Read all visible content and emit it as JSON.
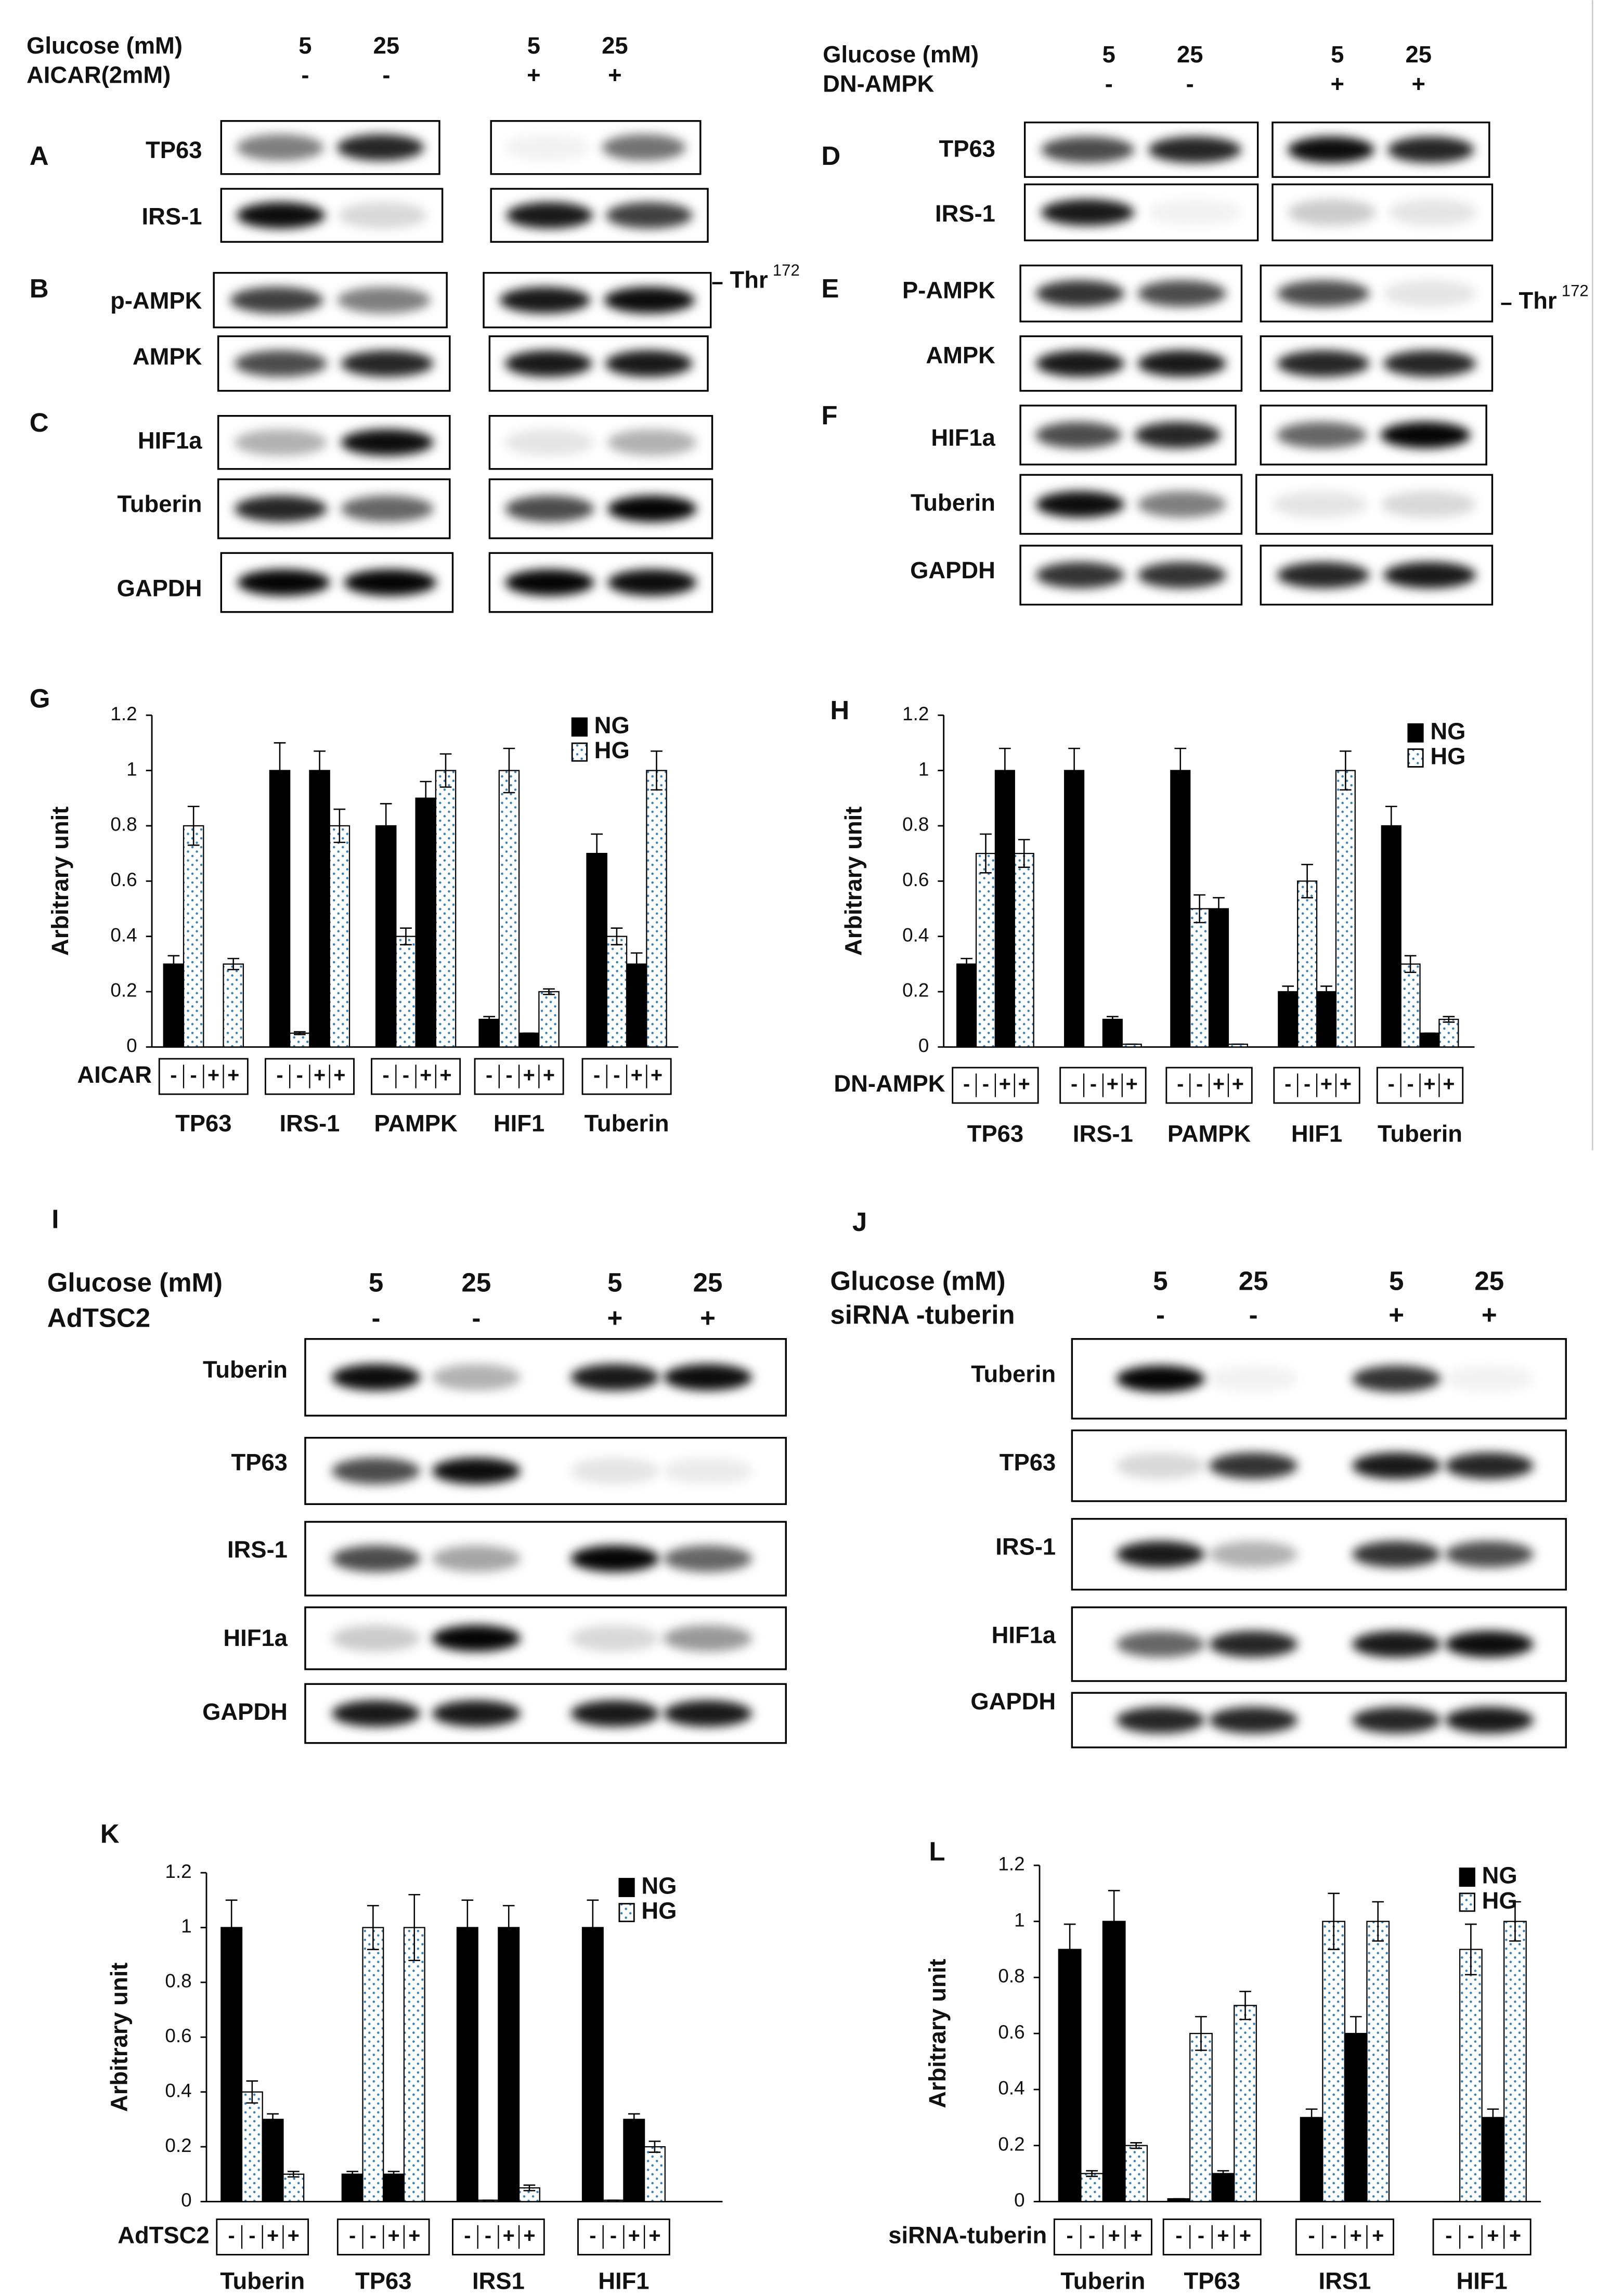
{
  "blots": [
    {
      "header": {
        "label": "Glucose (mM)",
        "lanes": [
          "5",
          "25",
          "5",
          "25"
        ]
      },
      "treatment": {
        "label": "AICAR(2mM)",
        "marks": [
          "-",
          "-",
          "+",
          "+"
        ]
      },
      "sections": [
        {
          "label": "A",
          "rows": [
            "TP63",
            "IRS-1"
          ]
        },
        {
          "label": "B",
          "rows": [
            "p-AMPK",
            "AMPK"
          ],
          "site": {
            "text": "Thr",
            "sup": "172"
          }
        },
        {
          "label": "C",
          "rows": [
            "HIF1a",
            "Tuberin",
            "GAPDH"
          ]
        }
      ]
    },
    {
      "header": {
        "label": "Glucose (mM)",
        "lanes": [
          "5",
          "25",
          "5",
          "25"
        ]
      },
      "treatment": {
        "label": "DN-AMPK",
        "marks": [
          "-",
          "-",
          "+",
          "+"
        ]
      },
      "sections": [
        {
          "label": "D",
          "rows": [
            "TP63",
            "IRS-1"
          ]
        },
        {
          "label": "E",
          "rows": [
            "P-AMPK",
            "AMPK"
          ],
          "site": {
            "text": "Thr",
            "sup": "172"
          }
        },
        {
          "label": "F",
          "rows": [
            "HIF1a",
            "Tuberin",
            "GAPDH"
          ]
        }
      ]
    },
    {
      "panel": "I",
      "header": {
        "label": "Glucose (mM)",
        "lanes": [
          "5",
          "25",
          "5",
          "25"
        ]
      },
      "treatment": {
        "label": "AdTSC2",
        "marks": [
          "-",
          "-",
          "+",
          "+"
        ]
      },
      "rows": [
        "Tuberin",
        "TP63",
        "IRS-1",
        "HIF1a",
        "GAPDH"
      ]
    },
    {
      "panel": "J",
      "header": {
        "label": "Glucose (mM)",
        "lanes": [
          "5",
          "25",
          "5",
          "25"
        ]
      },
      "treatment": {
        "label": "siRNA -tuberin",
        "marks": [
          "-",
          "-",
          "+",
          "+"
        ]
      },
      "rows": [
        "Tuberin",
        "TP63",
        "IRS-1",
        "HIF1a",
        "GAPDH"
      ]
    }
  ],
  "chart_data": [
    {
      "type": "bar",
      "panel": "G",
      "ylabel": "Arbitrary unit",
      "categories": [
        "TP63",
        "IRS-1",
        "PAMPK",
        "HIF1",
        "Tuberin"
      ],
      "treatment": "AICAR",
      "treatment_marks": [
        "-",
        "-",
        "+",
        "+"
      ],
      "series": [
        {
          "name": "NG",
          "color": "#000000",
          "values": [
            [
              0.3,
              0
            ],
            [
              1,
              1
            ],
            [
              0.8,
              0.9
            ],
            [
              0.1,
              0.05
            ],
            [
              0.7,
              0.3
            ]
          ],
          "errors": [
            [
              0.03,
              0
            ],
            [
              0.1,
              0.07
            ],
            [
              0.08,
              0.06
            ],
            [
              0.01,
              0
            ],
            [
              0.07,
              0.04
            ]
          ]
        },
        {
          "name": "HG",
          "color": "#3a7fb0",
          "values": [
            [
              0.8,
              0.3
            ],
            [
              0.05,
              0.8
            ],
            [
              0.4,
              1
            ],
            [
              1,
              0.2
            ],
            [
              0.4,
              1
            ]
          ],
          "errors": [
            [
              0.07,
              0.02
            ],
            [
              0.005,
              0.06
            ],
            [
              0.03,
              0.06
            ],
            [
              0.08,
              0.01
            ],
            [
              0.03,
              0.07
            ]
          ]
        }
      ],
      "ylim": [
        0,
        1.2
      ],
      "yticks": [
        0,
        0.2,
        0.4,
        0.6,
        0.8,
        1,
        1.2
      ],
      "grid": false
    },
    {
      "type": "bar",
      "panel": "H",
      "ylabel": "Arbitrary unit",
      "categories": [
        "TP63",
        "IRS-1",
        "PAMPK",
        "HIF1",
        "Tuberin"
      ],
      "treatment": "DN-AMPK",
      "treatment_marks": [
        "-",
        "-",
        "+",
        "+"
      ],
      "series": [
        {
          "name": "NG",
          "color": "#000000",
          "values": [
            [
              0.3,
              1
            ],
            [
              1,
              0.1
            ],
            [
              1,
              0.5
            ],
            [
              0.2,
              0.2
            ],
            [
              0.8,
              0.05
            ]
          ],
          "errors": [
            [
              0.02,
              0.08
            ],
            [
              0.08,
              0.01
            ],
            [
              0.08,
              0.04
            ],
            [
              0.02,
              0.02
            ],
            [
              0.07,
              0
            ]
          ]
        },
        {
          "name": "HG",
          "color": "#3a7fb0",
          "values": [
            [
              0.7,
              0.7
            ],
            [
              0,
              0.01
            ],
            [
              0.5,
              0.01
            ],
            [
              0.6,
              1
            ],
            [
              0.3,
              0.1
            ]
          ],
          "errors": [
            [
              0.07,
              0.05
            ],
            [
              0,
              0
            ],
            [
              0.05,
              0
            ],
            [
              0.06,
              0.07
            ],
            [
              0.03,
              0.01
            ]
          ]
        }
      ],
      "ylim": [
        0,
        1.2
      ],
      "yticks": [
        0,
        0.2,
        0.4,
        0.6,
        0.8,
        1,
        1.2
      ],
      "grid": false
    },
    {
      "type": "bar",
      "panel": "K",
      "ylabel": "Arbitrary unit",
      "categories": [
        "Tuberin",
        "TP63",
        "IRS1",
        "HIF1"
      ],
      "treatment": "AdTSC2",
      "treatment_marks": [
        "-",
        "-",
        "+",
        "+"
      ],
      "series": [
        {
          "name": "NG",
          "color": "#000000",
          "values": [
            [
              1,
              0.3
            ],
            [
              0.1,
              0.1
            ],
            [
              1,
              1
            ],
            [
              1,
              0.3
            ]
          ],
          "errors": [
            [
              0.1,
              0.02
            ],
            [
              0.01,
              0.01
            ],
            [
              0.1,
              0.08
            ],
            [
              0.1,
              0.02
            ]
          ]
        },
        {
          "name": "HG",
          "color": "#3a7fb0",
          "values": [
            [
              0.4,
              0.1
            ],
            [
              1,
              1
            ],
            [
              0.005,
              0.05
            ],
            [
              0.005,
              0.2
            ]
          ],
          "errors": [
            [
              0.04,
              0.01
            ],
            [
              0.08,
              0.12
            ],
            [
              0,
              0.01
            ],
            [
              0,
              0.02
            ]
          ]
        }
      ],
      "ylim": [
        0,
        1.2
      ],
      "yticks": [
        0,
        0.2,
        0.4,
        0.6,
        0.8,
        1,
        1.2
      ],
      "grid": false
    },
    {
      "type": "bar",
      "panel": "L",
      "ylabel": "Arbitrary unit",
      "categories": [
        "Tuberin",
        "TP63",
        "IRS1",
        "HIF1"
      ],
      "treatment": "siRNA-tuberin",
      "treatment_marks": [
        "-",
        "-",
        "+",
        "+"
      ],
      "series": [
        {
          "name": "NG",
          "color": "#000000",
          "values": [
            [
              0.9,
              1
            ],
            [
              0.01,
              0.1
            ],
            [
              0.3,
              0.6
            ],
            [
              0,
              0.3
            ]
          ],
          "errors": [
            [
              0.09,
              0.11
            ],
            [
              0,
              0.01
            ],
            [
              0.03,
              0.06
            ],
            [
              0,
              0.03
            ]
          ]
        },
        {
          "name": "HG",
          "color": "#3a7fb0",
          "values": [
            [
              0.1,
              0.2
            ],
            [
              0.6,
              0.7
            ],
            [
              1,
              1
            ],
            [
              0.9,
              1
            ]
          ],
          "errors": [
            [
              0.01,
              0.01
            ],
            [
              0.06,
              0.05
            ],
            [
              0.1,
              0.07
            ],
            [
              0.09,
              0.07
            ]
          ]
        }
      ],
      "ylim": [
        0,
        1.2
      ],
      "yticks": [
        0,
        0.2,
        0.4,
        0.6,
        0.8,
        1,
        1.2
      ],
      "grid": false
    }
  ]
}
